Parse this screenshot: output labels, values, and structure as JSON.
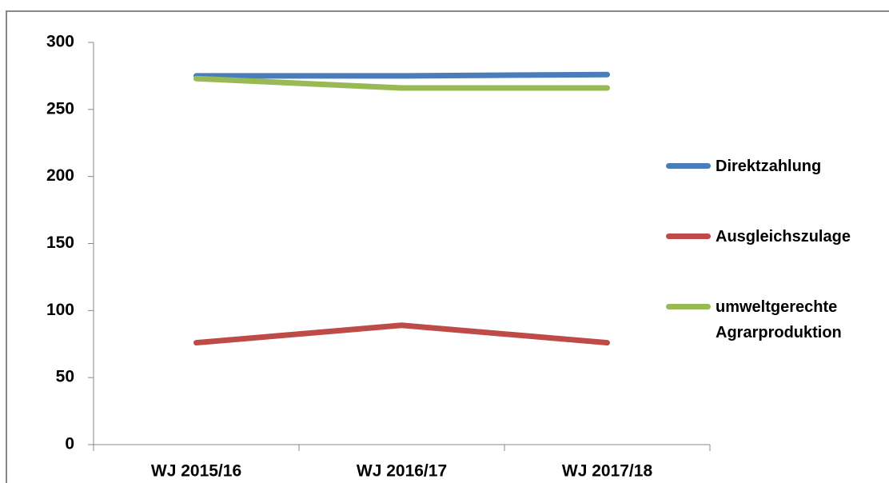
{
  "chart_data": {
    "type": "line",
    "categories": [
      "WJ 2015/16",
      "WJ 2016/17",
      "WJ 2017/18"
    ],
    "series": [
      {
        "name": "Direktzahlung",
        "color": "#4a7ebb",
        "values": [
          275,
          275,
          276
        ]
      },
      {
        "name": "Ausgleichszulage",
        "color": "#be4b48",
        "values": [
          76,
          89,
          76
        ]
      },
      {
        "name": "umweltgerechte Agrarproduktion",
        "color": "#98b954",
        "values": [
          273,
          266,
          266
        ]
      }
    ],
    "ylim": [
      0,
      300
    ],
    "yticks": [
      0,
      50,
      100,
      150,
      200,
      250,
      300
    ],
    "grid": false,
    "legend": "right"
  }
}
